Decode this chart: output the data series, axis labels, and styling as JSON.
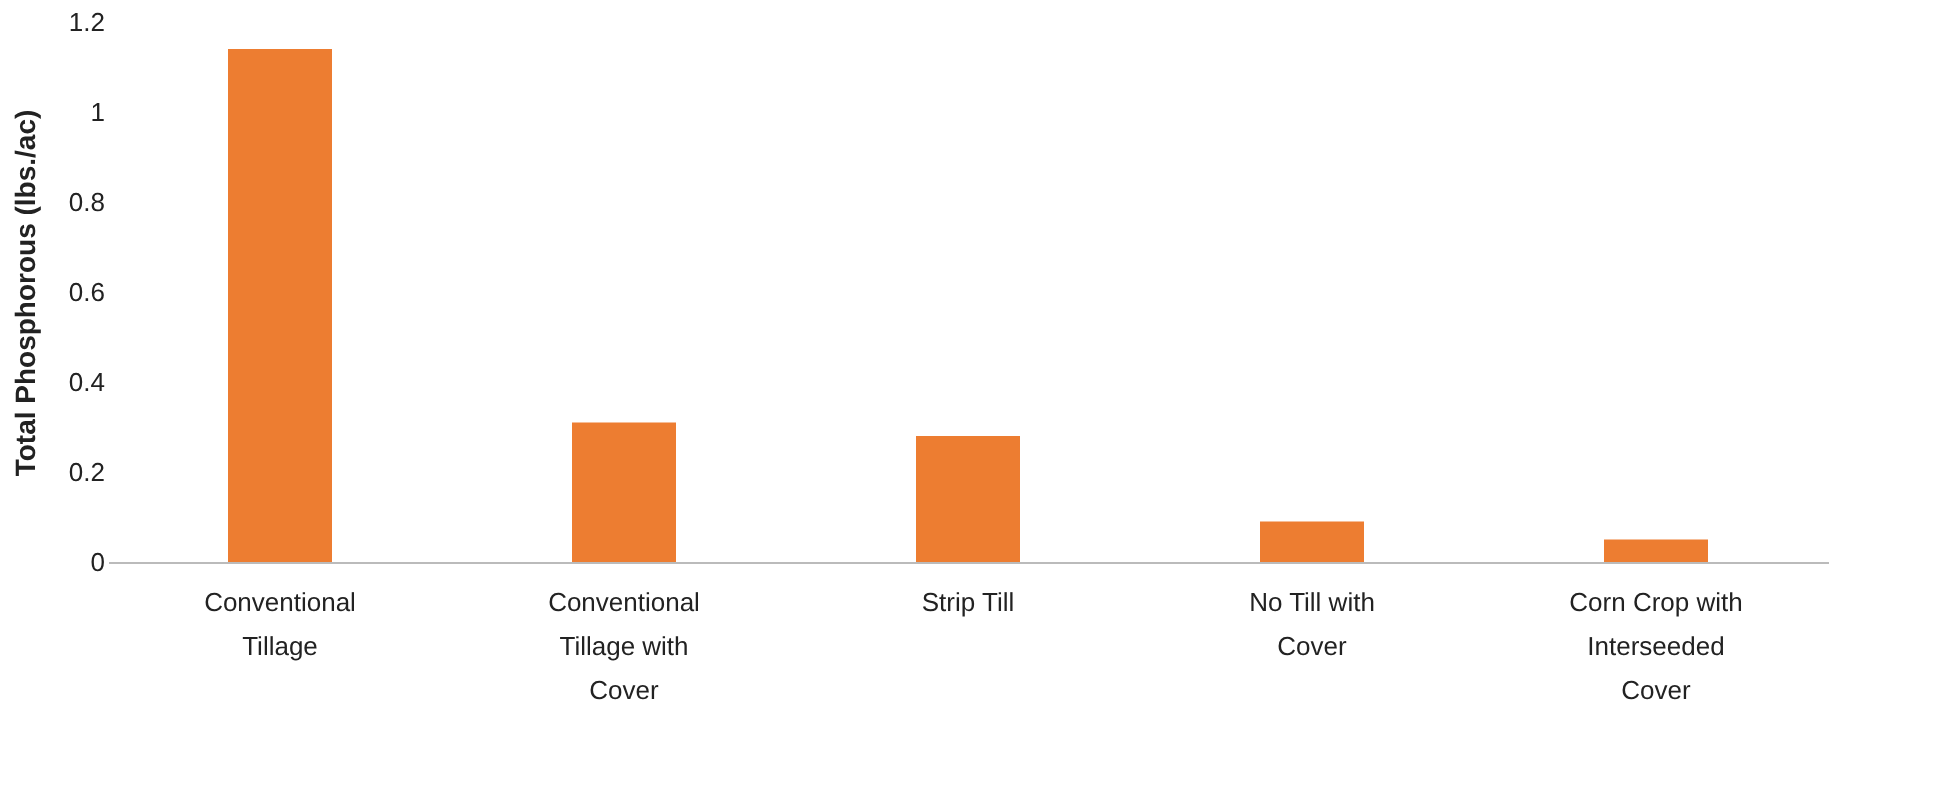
{
  "chart_data": {
    "type": "bar",
    "ylabel": "Total Phosphorous (lbs./ac)",
    "categories": [
      "Conventional Tillage",
      "Conventional Tillage with Cover",
      "Strip Till",
      "No Till with Cover",
      "Corn Crop with Interseeded Cover"
    ],
    "values": [
      1.14,
      0.31,
      0.28,
      0.09,
      0.05
    ],
    "color": "#ed7d31",
    "ylim": [
      0,
      1.2
    ],
    "yticks": [
      0,
      0.2,
      0.4,
      0.6,
      0.8,
      1,
      1.2
    ],
    "grid": false
  }
}
